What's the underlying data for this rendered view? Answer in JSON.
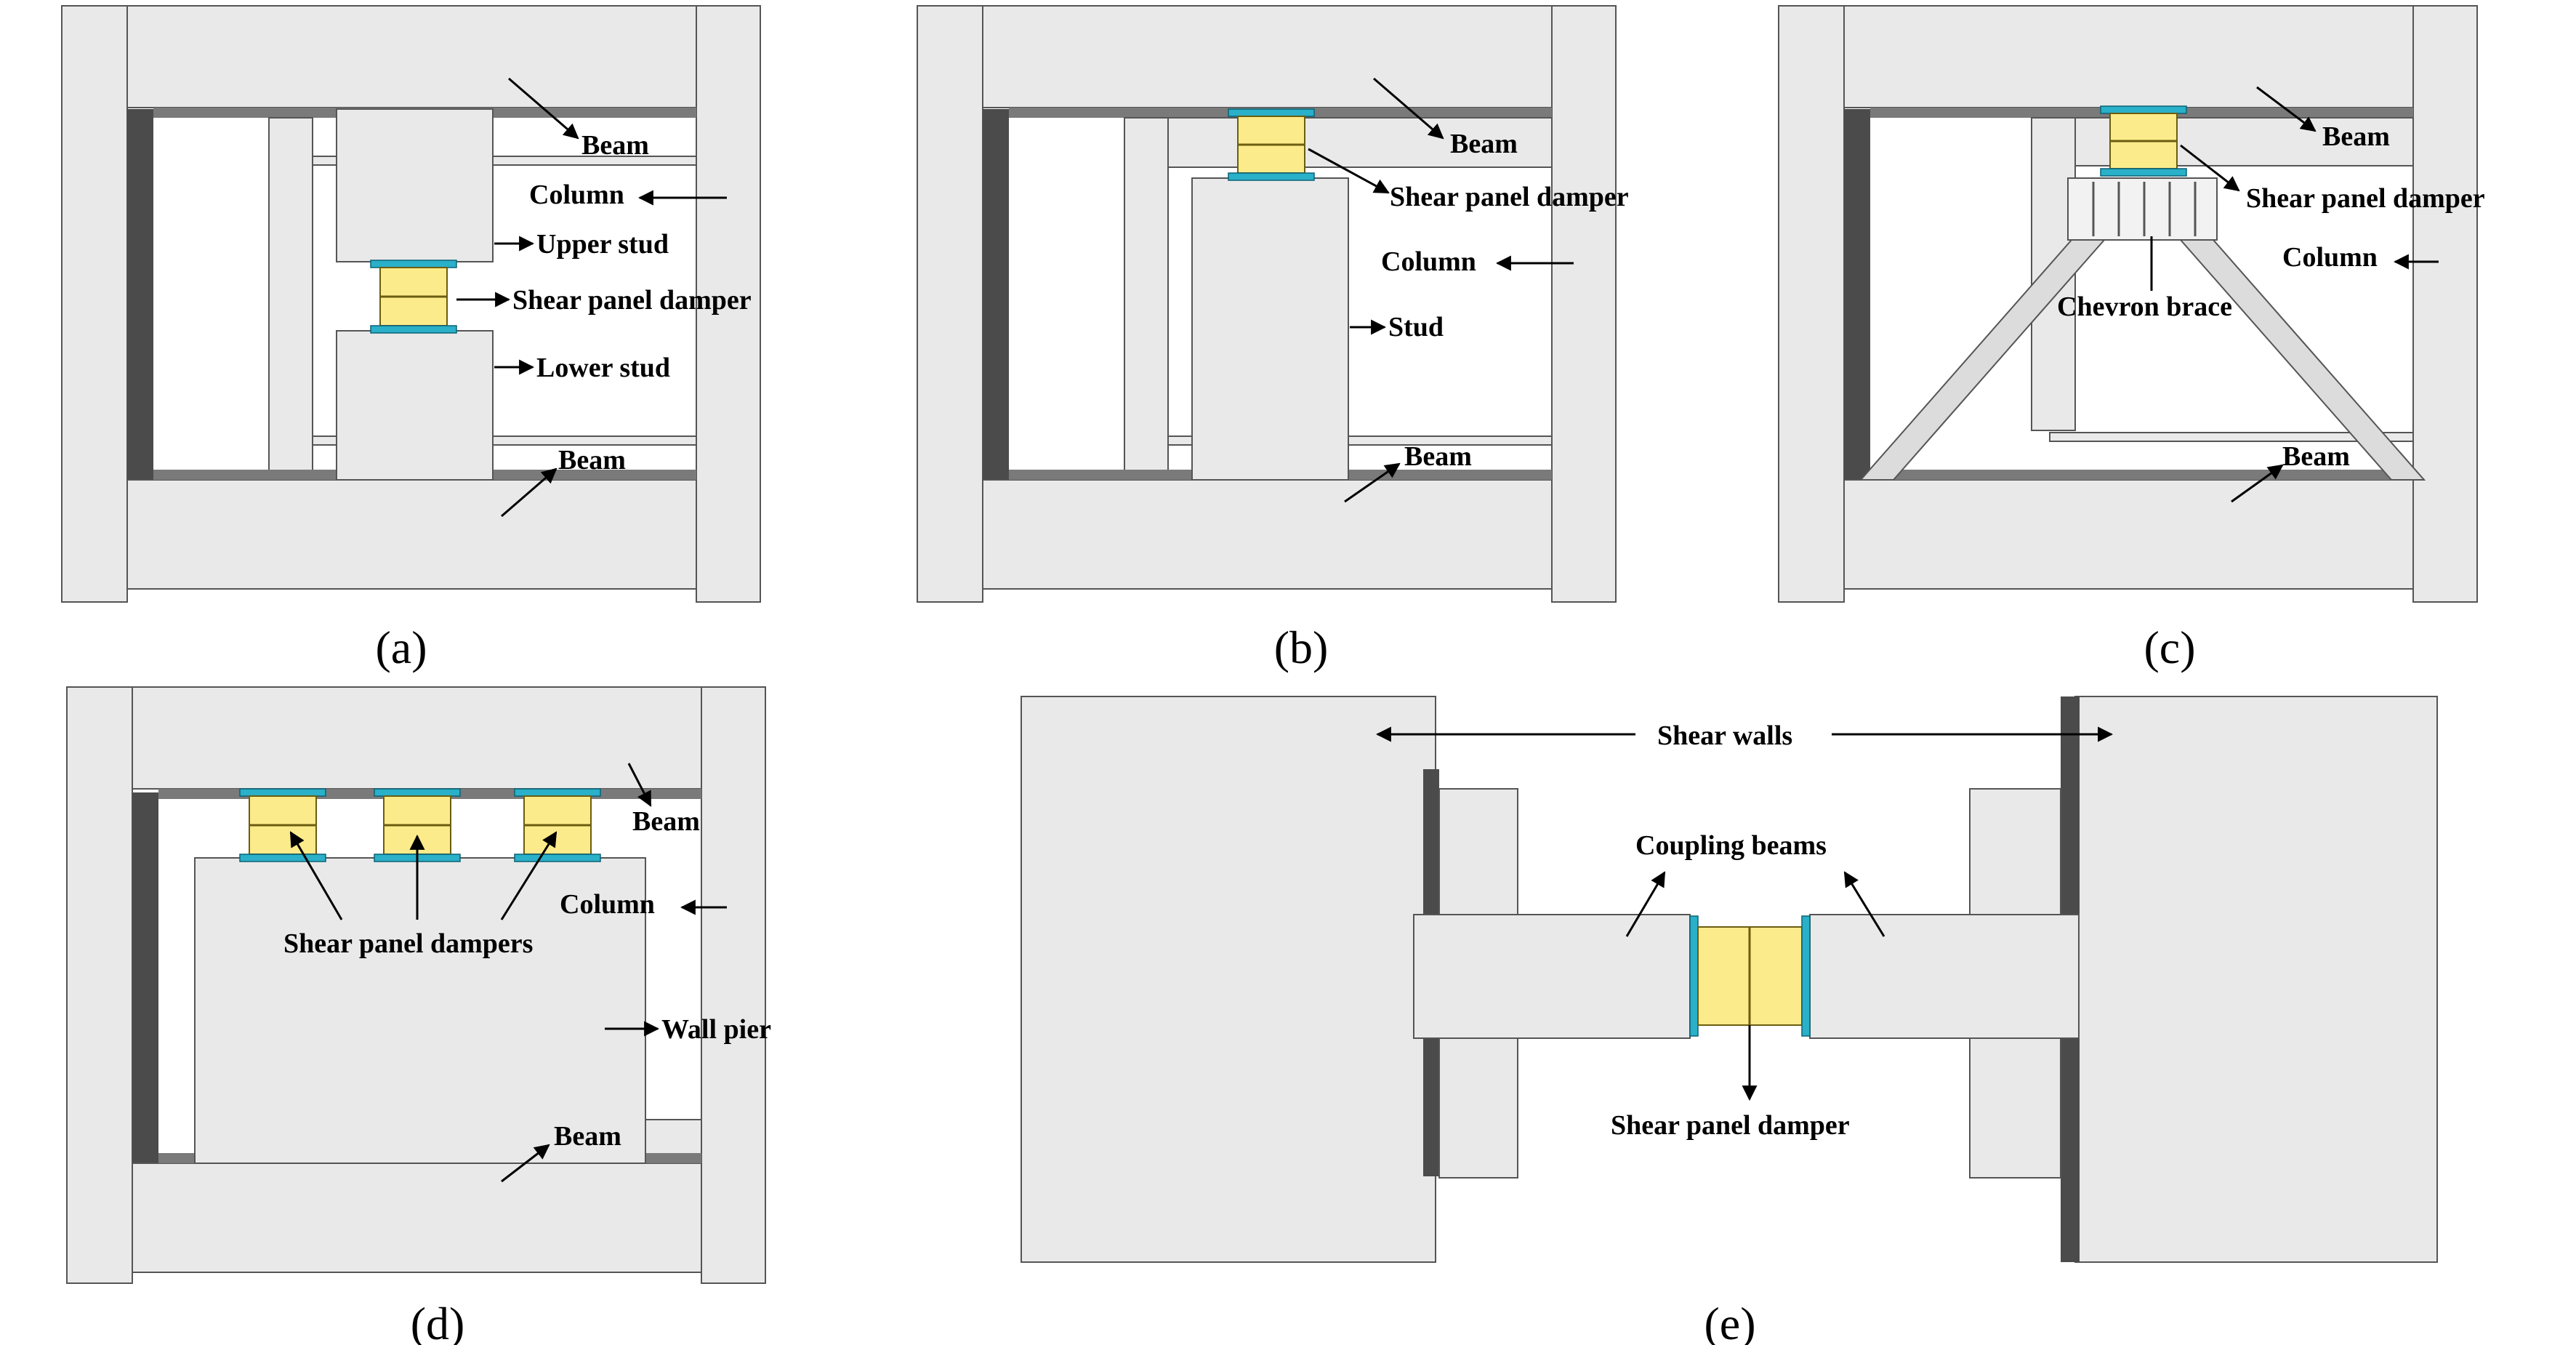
{
  "panels": {
    "a": {
      "caption": "(a)",
      "labels": {
        "beam_top": "Beam",
        "column": "Column",
        "upper_stud": "Upper stud",
        "damper": "Shear panel damper",
        "lower_stud": "Lower stud",
        "beam_bottom": "Beam"
      }
    },
    "b": {
      "caption": "(b)",
      "labels": {
        "beam_top": "Beam",
        "damper": "Shear panel damper",
        "column": "Column",
        "stud": "Stud",
        "beam_bottom": "Beam"
      }
    },
    "c": {
      "caption": "(c)",
      "labels": {
        "beam_top": "Beam",
        "damper": "Shear panel damper",
        "column": "Column",
        "brace": "Chevron brace",
        "beam_bottom": "Beam"
      }
    },
    "d": {
      "caption": "(d)",
      "labels": {
        "beam_top": "Beam",
        "column": "Column",
        "dampers": "Shear panel dampers",
        "wall_pier": "Wall pier",
        "beam_bottom": "Beam"
      }
    },
    "e": {
      "caption": "(e)",
      "labels": {
        "shear_walls": "Shear walls",
        "coupling_beams": "Coupling beams",
        "damper": "Shear panel damper"
      }
    }
  },
  "colors": {
    "concrete": "#e9e9e9",
    "damper_core": "#fbeb8a",
    "damper_plate": "#2ab0c8",
    "edge_shadow": "#4b4b4b"
  }
}
